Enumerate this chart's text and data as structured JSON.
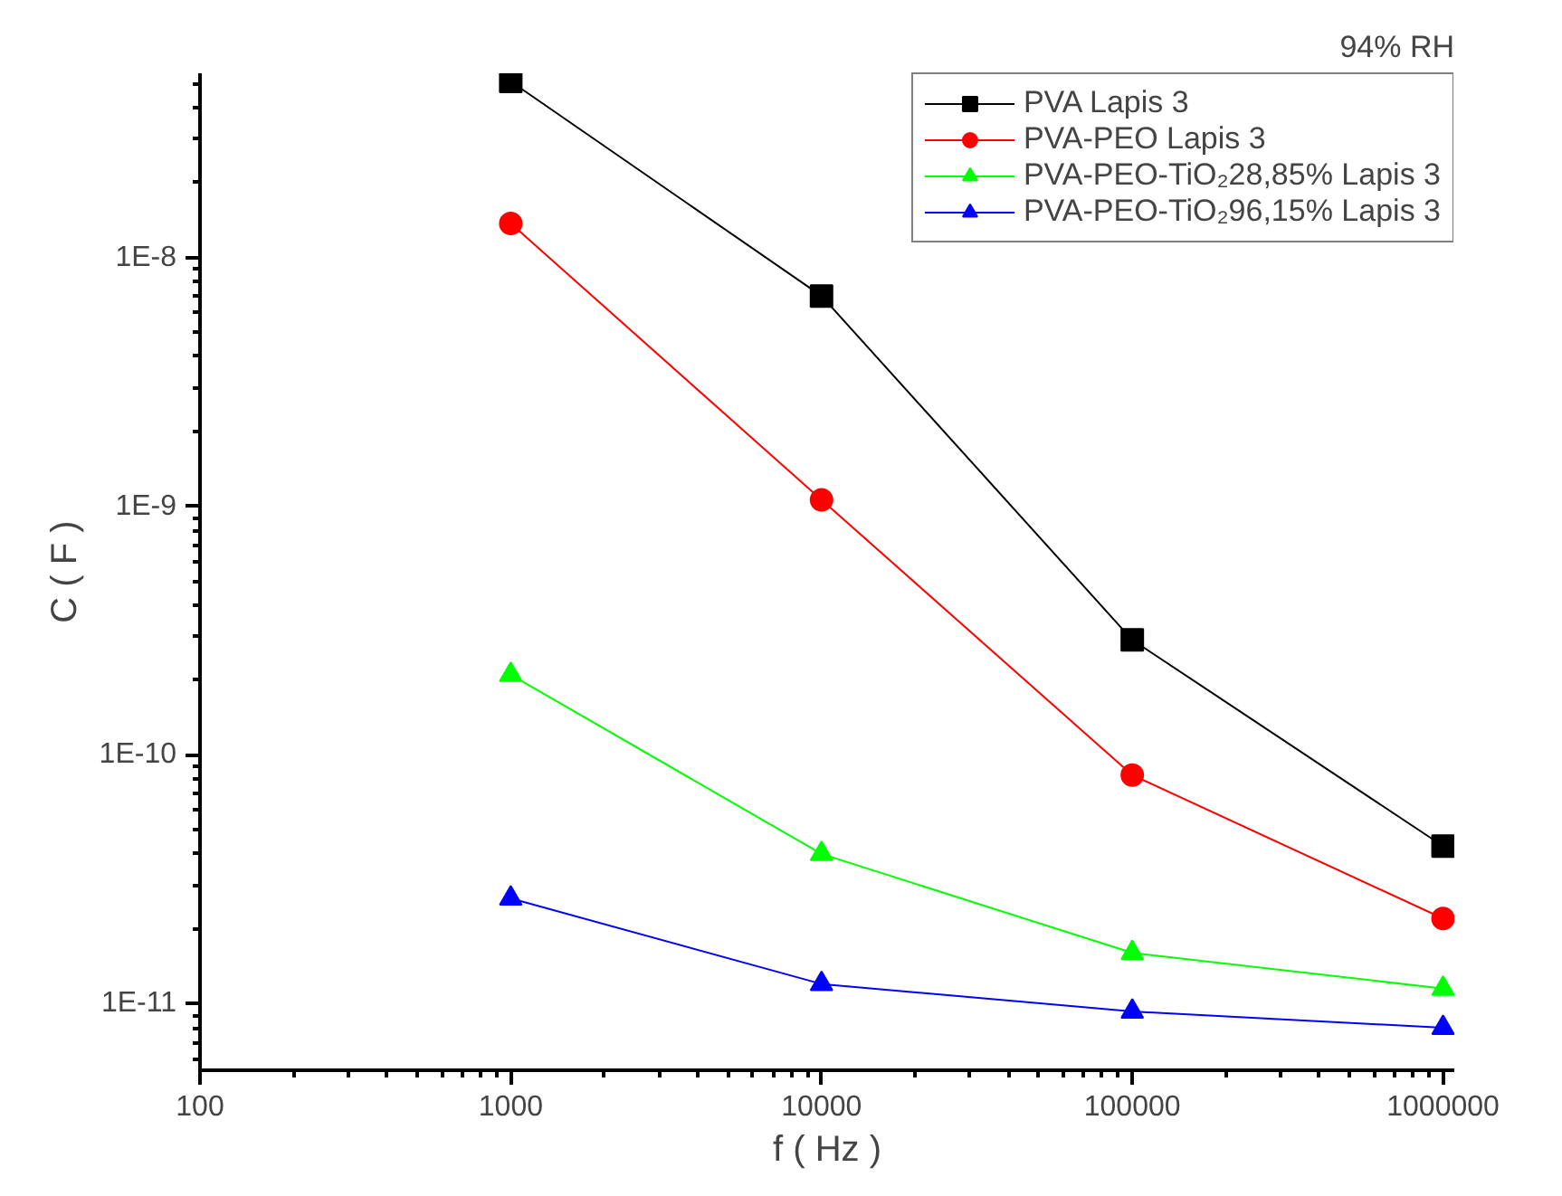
{
  "chart_data": {
    "type": "line",
    "title": "94% RH",
    "xlabel": "f ( Hz )",
    "ylabel": "C ( F )",
    "log": "xy",
    "grid": false,
    "legend": "top right",
    "line_style": "solid",
    "x": [
      1000,
      10000,
      100000,
      1000000
    ],
    "xlim": [
      100,
      1087000
    ],
    "ylim": [
      5.4e-12,
      5.5e-08
    ],
    "xticks": [
      100,
      1000,
      10000,
      100000,
      1000000
    ],
    "yticks": [
      {
        "value": 1e-11,
        "label": "1E-11"
      },
      {
        "value": 1e-10,
        "label": "1E-10"
      },
      {
        "value": 1e-09,
        "label": "1E-9"
      },
      {
        "value": 1e-08,
        "label": "1E-8"
      }
    ],
    "series": [
      {
        "name": "PVA Lapis 3",
        "color": "#000000",
        "marker": "square",
        "values": [
          5.1e-08,
          7e-09,
          2.9e-10,
          4.3e-11
        ]
      },
      {
        "name": "PVA-PEO Lapis 3",
        "color": "#ff0000",
        "marker": "circle",
        "values": [
          1.37e-08,
          1.06e-09,
          8.3e-11,
          2.2e-11
        ]
      },
      {
        "name": "PVA-PEO-TiO₂28,85% Lapis 3",
        "color": "#00ff00",
        "marker": "triangle",
        "values": [
          2.1e-10,
          4e-11,
          1.6e-11,
          1.15e-11
        ]
      },
      {
        "name": "PVA-PEO-TiO₂96,15% Lapis 3",
        "color": "#0000ff",
        "marker": "triangle",
        "values": [
          2.65e-11,
          1.2e-11,
          9.3e-12,
          8e-12
        ]
      }
    ]
  }
}
